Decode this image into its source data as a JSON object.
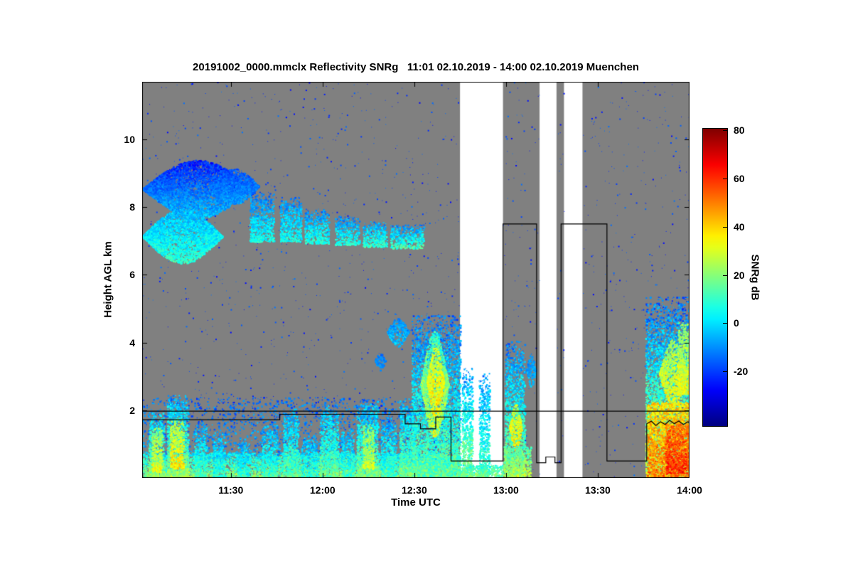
{
  "chart_data": {
    "type": "heatmap",
    "title": "20191002_0000.mmclx Reflectivity SNRg   11:01 02.10.2019 - 14:00 02.10.2019 Muenchen",
    "xlabel": "Time UTC",
    "ylabel": "Height AGL km",
    "colorbar_label": "SNRg dB",
    "x_start_min": 661,
    "x_end_min": 840,
    "x_ticks": [
      {
        "label": "11:30",
        "min": 690
      },
      {
        "label": "12:00",
        "min": 720
      },
      {
        "label": "12:30",
        "min": 750
      },
      {
        "label": "13:00",
        "min": 780
      },
      {
        "label": "13:30",
        "min": 810
      },
      {
        "label": "14:00",
        "min": 840
      }
    ],
    "y_min": 0,
    "y_max": 11.7,
    "y_ticks": [
      2,
      4,
      6,
      8,
      10
    ],
    "colorbar": {
      "min": -43,
      "max": 81,
      "ticks": [
        -20,
        0,
        20,
        40,
        60,
        80
      ]
    },
    "no_signal_color": "#808080",
    "gap_color": "#ffffff",
    "speckle": {
      "density": 0.004,
      "value": -20
    },
    "background_regions": [
      {
        "t0": 661,
        "t1": 765,
        "bg": "gray"
      },
      {
        "t0": 765,
        "t1": 779,
        "bg": "white"
      },
      {
        "t0": 779,
        "t1": 791,
        "bg": "gray"
      },
      {
        "t0": 791,
        "t1": 796.5,
        "bg": "white"
      },
      {
        "t0": 796.5,
        "t1": 799,
        "bg": "gray"
      },
      {
        "t0": 799,
        "t1": 805,
        "bg": "white"
      },
      {
        "t0": 805,
        "t1": 840,
        "bg": "gray"
      }
    ],
    "echo_features": [
      {
        "t0": 661,
        "t1": 697,
        "h0": 7.7,
        "h1": 9.4,
        "vt": -24,
        "vb": -4,
        "n": 6,
        "d": 0.55,
        "s": "lens"
      },
      {
        "t0": 661,
        "t1": 687,
        "h0": 6.35,
        "h1": 7.95,
        "vt": -6,
        "vb": 10,
        "n": 7,
        "d": 0.5,
        "s": "lens"
      },
      {
        "t0": 683,
        "t1": 699,
        "h0": 8.1,
        "h1": 9.15,
        "vt": -18,
        "vb": -8,
        "n": 5,
        "d": 0.4,
        "s": "lens"
      },
      {
        "t0": 696,
        "t1": 704,
        "h0": 7.0,
        "h1": 8.45,
        "vt": -14,
        "vb": 6,
        "n": 7,
        "d": 0.3,
        "s": "col"
      },
      {
        "t0": 706,
        "t1": 713,
        "h0": 7.0,
        "h1": 8.3,
        "vt": -12,
        "vb": 6,
        "n": 7,
        "d": 0.3,
        "s": "col"
      },
      {
        "t0": 714,
        "t1": 722,
        "h0": 6.95,
        "h1": 7.95,
        "vt": -12,
        "vb": 8,
        "n": 7,
        "d": 0.3,
        "s": "col"
      },
      {
        "t0": 724,
        "t1": 732,
        "h0": 6.9,
        "h1": 7.75,
        "vt": -12,
        "vb": 8,
        "n": 7,
        "d": 0.28,
        "s": "col"
      },
      {
        "t0": 733,
        "t1": 741,
        "h0": 6.85,
        "h1": 7.6,
        "vt": -10,
        "vb": 10,
        "n": 7,
        "d": 0.3,
        "s": "col"
      },
      {
        "t0": 742,
        "t1": 753,
        "h0": 6.8,
        "h1": 7.5,
        "vt": -10,
        "vb": 12,
        "n": 8,
        "d": 0.3,
        "s": "col"
      },
      {
        "t0": 661,
        "t1": 765,
        "h0": 0,
        "h1": 0.75,
        "vt": 2,
        "vb": 20,
        "n": 10,
        "d": 0.4,
        "s": "layer"
      },
      {
        "t0": 661,
        "t1": 765,
        "h0": 0.7,
        "h1": 2.4,
        "vt": -16,
        "vb": -8,
        "n": 8,
        "d": 0.05,
        "s": "layer"
      },
      {
        "t0": 663,
        "t1": 668,
        "h0": 0,
        "h1": 2.0,
        "vt": -6,
        "vb": 22,
        "n": 8,
        "d": 0.32,
        "s": "col"
      },
      {
        "t0": 664,
        "t1": 667.5,
        "h0": 0.2,
        "h1": 1.5,
        "vt": 20,
        "vb": 34,
        "n": 7,
        "d": 0.3,
        "s": "col"
      },
      {
        "t0": 669,
        "t1": 676,
        "h0": 0,
        "h1": 2.45,
        "vt": -6,
        "vb": 24,
        "n": 8,
        "d": 0.32,
        "s": "col"
      },
      {
        "t0": 670,
        "t1": 674.5,
        "h0": 0.3,
        "h1": 1.75,
        "vt": 24,
        "vb": 38,
        "n": 7,
        "d": 0.32,
        "s": "col"
      },
      {
        "t0": 678,
        "t1": 682,
        "h0": 0,
        "h1": 1.6,
        "vt": -8,
        "vb": 14,
        "n": 8,
        "d": 0.3,
        "s": "col"
      },
      {
        "t0": 684,
        "t1": 688,
        "h0": 0,
        "h1": 1.35,
        "vt": -8,
        "vb": 10,
        "n": 8,
        "d": 0.28,
        "s": "col"
      },
      {
        "t0": 692,
        "t1": 696,
        "h0": 0,
        "h1": 1.2,
        "vt": -8,
        "vb": 8,
        "n": 8,
        "d": 0.26,
        "s": "col"
      },
      {
        "t0": 700,
        "t1": 705,
        "h0": 0,
        "h1": 1.6,
        "vt": -8,
        "vb": 12,
        "n": 8,
        "d": 0.28,
        "s": "col"
      },
      {
        "t0": 707,
        "t1": 712,
        "h0": 0,
        "h1": 2.05,
        "vt": -8,
        "vb": 16,
        "n": 8,
        "d": 0.3,
        "s": "col"
      },
      {
        "t0": 713,
        "t1": 718,
        "h0": 0,
        "h1": 1.25,
        "vt": -8,
        "vb": 10,
        "n": 8,
        "d": 0.26,
        "s": "col"
      },
      {
        "t0": 719,
        "t1": 725,
        "h0": 0,
        "h1": 2.15,
        "vt": -8,
        "vb": 18,
        "n": 8,
        "d": 0.3,
        "s": "col"
      },
      {
        "t0": 726,
        "t1": 730,
        "h0": 0,
        "h1": 1.5,
        "vt": -8,
        "vb": 12,
        "n": 8,
        "d": 0.28,
        "s": "col"
      },
      {
        "t0": 731,
        "t1": 738,
        "h0": 0,
        "h1": 2.3,
        "vt": -8,
        "vb": 20,
        "n": 8,
        "d": 0.3,
        "s": "col"
      },
      {
        "t0": 733,
        "t1": 736.5,
        "h0": 0.3,
        "h1": 1.6,
        "vt": 18,
        "vb": 30,
        "n": 6,
        "d": 0.3,
        "s": "col"
      },
      {
        "t0": 739,
        "t1": 744,
        "h0": 0,
        "h1": 1.8,
        "vt": -8,
        "vb": 12,
        "n": 8,
        "d": 0.28,
        "s": "col"
      },
      {
        "t0": 745,
        "t1": 750,
        "h0": 0,
        "h1": 2.35,
        "vt": -6,
        "vb": 18,
        "n": 8,
        "d": 0.3,
        "s": "col"
      },
      {
        "t0": 737,
        "t1": 740.5,
        "h0": 3.2,
        "h1": 3.75,
        "vt": -14,
        "vb": -8,
        "n": 4,
        "d": 0.25,
        "s": "lens"
      },
      {
        "t0": 741,
        "t1": 748,
        "h0": 3.9,
        "h1": 4.75,
        "vt": -12,
        "vb": -2,
        "n": 6,
        "d": 0.3,
        "s": "lens"
      },
      {
        "t0": 749,
        "t1": 765,
        "h0": 0,
        "h1": 4.8,
        "vt": -14,
        "vb": 16,
        "n": 9,
        "d": 0.3,
        "s": "col"
      },
      {
        "t0": 752,
        "t1": 761,
        "h0": 1.2,
        "h1": 4.35,
        "vt": 8,
        "vb": 30,
        "n": 9,
        "d": 0.3,
        "s": "lens"
      },
      {
        "t0": 754,
        "t1": 759.5,
        "h0": 1.8,
        "h1": 3.9,
        "vt": 28,
        "vb": 38,
        "n": 7,
        "d": 0.28,
        "s": "lens"
      },
      {
        "t0": 765.5,
        "t1": 769,
        "h0": 0,
        "h1": 3.25,
        "vt": -10,
        "vb": 22,
        "n": 9,
        "d": 0.3,
        "s": "col"
      },
      {
        "t0": 771,
        "t1": 774.5,
        "h0": 0,
        "h1": 3.1,
        "vt": -10,
        "vb": 14,
        "n": 8,
        "d": 0.28,
        "s": "col"
      },
      {
        "t0": 765,
        "t1": 779,
        "h0": 0,
        "h1": 0.4,
        "vt": 8,
        "vb": 20,
        "n": 8,
        "d": 0.35,
        "s": "layer"
      },
      {
        "t0": 779.5,
        "t1": 786,
        "h0": 0,
        "h1": 4.05,
        "vt": -12,
        "vb": 22,
        "n": 9,
        "d": 0.3,
        "s": "col"
      },
      {
        "t0": 781,
        "t1": 785,
        "h0": 0.8,
        "h1": 2.2,
        "vt": 26,
        "vb": 38,
        "n": 8,
        "d": 0.3,
        "s": "lens"
      },
      {
        "t0": 779,
        "t1": 788,
        "h0": 0,
        "h1": 0.95,
        "vt": 12,
        "vb": 26,
        "n": 8,
        "d": 0.32,
        "s": "layer"
      },
      {
        "t0": 786.5,
        "t1": 789.5,
        "h0": 2.7,
        "h1": 3.7,
        "vt": -12,
        "vb": -4,
        "n": 5,
        "d": 0.25,
        "s": "lens"
      },
      {
        "t0": 825.5,
        "t1": 840,
        "h0": 0,
        "h1": 5.35,
        "vt": -16,
        "vb": 30,
        "n": 10,
        "d": 0.32,
        "s": "col"
      },
      {
        "t0": 826,
        "t1": 840,
        "h0": 0,
        "h1": 2.25,
        "vt": 38,
        "vb": 52,
        "n": 10,
        "d": 0.35,
        "s": "layer"
      },
      {
        "t0": 830,
        "t1": 839,
        "h0": 2.1,
        "h1": 4.1,
        "vt": 22,
        "vb": 36,
        "n": 8,
        "d": 0.3,
        "s": "lens"
      },
      {
        "t0": 832,
        "t1": 840,
        "h0": 0.15,
        "h1": 1.6,
        "vt": 52,
        "vb": 62,
        "n": 7,
        "d": 0.3,
        "s": "layer"
      },
      {
        "t0": 836,
        "t1": 840,
        "h0": 2.5,
        "h1": 4.6,
        "vt": 18,
        "vb": 34,
        "n": 8,
        "d": 0.3,
        "s": "col"
      }
    ],
    "overlay_lines": [
      {
        "name": "upper-range-line",
        "points": [
          [
            661,
            1.97
          ],
          [
            840,
            1.97
          ]
        ]
      },
      {
        "name": "stepped-status-line",
        "points": [
          [
            661,
            1.72
          ],
          [
            706,
            1.72
          ],
          [
            706,
            1.88
          ],
          [
            747,
            1.88
          ],
          [
            747,
            1.6
          ],
          [
            752,
            1.6
          ],
          [
            752,
            1.45
          ],
          [
            757,
            1.45
          ],
          [
            757,
            1.8
          ],
          [
            762,
            1.8
          ],
          [
            762,
            0.5
          ],
          [
            779,
            0.5
          ],
          [
            779,
            7.5
          ],
          [
            790,
            7.5
          ],
          [
            790,
            0.45
          ],
          [
            793,
            0.45
          ],
          [
            793,
            0.62
          ],
          [
            796,
            0.62
          ],
          [
            796,
            0.45
          ],
          [
            798,
            0.45
          ],
          [
            798,
            7.5
          ],
          [
            813,
            7.5
          ],
          [
            813,
            0.5
          ],
          [
            826,
            0.5
          ],
          [
            826,
            1.6
          ],
          [
            827.5,
            1.68
          ],
          [
            829,
            1.55
          ],
          [
            830.5,
            1.66
          ],
          [
            832,
            1.58
          ],
          [
            833.5,
            1.7
          ],
          [
            835,
            1.6
          ],
          [
            836.5,
            1.68
          ],
          [
            838,
            1.58
          ],
          [
            839.5,
            1.66
          ],
          [
            840,
            1.62
          ]
        ]
      }
    ]
  }
}
